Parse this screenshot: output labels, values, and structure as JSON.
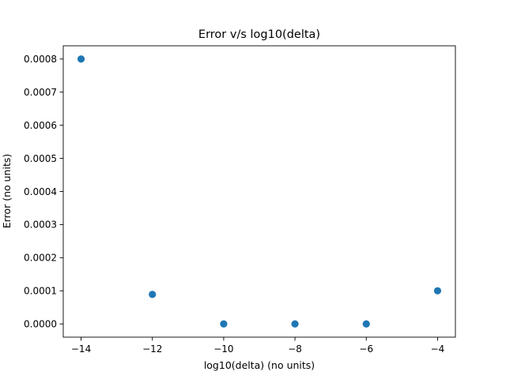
{
  "colors": {
    "marker": "#1f77b4",
    "axes": "#000000",
    "background": "#ffffff"
  },
  "chart_data": {
    "type": "scatter",
    "title": "Error v/s log10(delta)",
    "xlabel": "log10(delta) (no units)",
    "ylabel": "Error (no units)",
    "x": [
      -14,
      -12,
      -10,
      -8,
      -6,
      -4
    ],
    "y": [
      0.0008,
      8.9e-05,
      0.0,
      0.0,
      0.0,
      0.0001
    ],
    "xlim": [
      -14.5,
      -3.5
    ],
    "ylim": [
      -4e-05,
      0.00084
    ],
    "xticks": [
      -14,
      -12,
      -10,
      -8,
      -6,
      -4
    ],
    "xtick_labels": [
      "−14",
      "−12",
      "−10",
      "−8",
      "−6",
      "−4"
    ],
    "yticks": [
      0.0,
      0.0001,
      0.0002,
      0.0003,
      0.0004,
      0.0005,
      0.0006,
      0.0007,
      0.0008
    ],
    "ytick_labels": [
      "0.0000",
      "0.0001",
      "0.0002",
      "0.0003",
      "0.0004",
      "0.0005",
      "0.0006",
      "0.0007",
      "0.0008"
    ],
    "grid": false,
    "legend": false
  }
}
